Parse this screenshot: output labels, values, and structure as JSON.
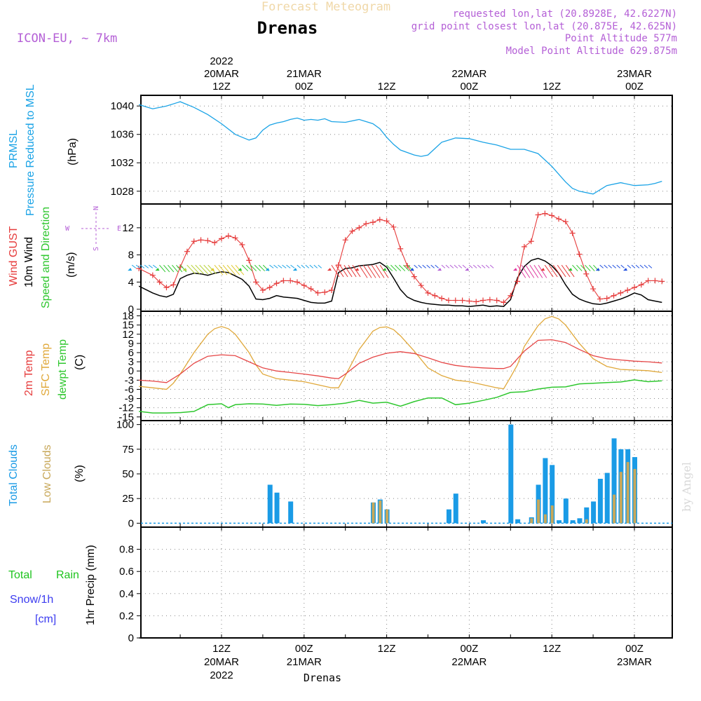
{
  "header": {
    "title_faint": "Forecast Meteogram",
    "place": "Drenas",
    "model": "ICON-EU, ~ 7km",
    "requested": "requested lon,lat (20.8928E, 42.6227N)",
    "gridpoint": "grid point closest lon,lat (20.875E, 42.625N)",
    "point_alt": "Point Altitude 577m",
    "model_alt": "Model Point Altitude 629.875m",
    "credit": "by Angel",
    "footer_place": "Drenas"
  },
  "time_axis": {
    "top_labels": [
      {
        "h": 12,
        "lines": [
          "2022",
          "20MAR",
          "12Z"
        ]
      },
      {
        "h": 24,
        "lines": [
          "21MAR",
          "00Z"
        ]
      },
      {
        "h": 36,
        "lines": [
          "12Z"
        ]
      },
      {
        "h": 48,
        "lines": [
          "22MAR",
          "00Z"
        ]
      },
      {
        "h": 60,
        "lines": [
          "12Z"
        ]
      },
      {
        "h": 72,
        "lines": [
          "23MAR",
          "00Z"
        ]
      }
    ],
    "bottom_labels": [
      {
        "h": 12,
        "lines": [
          "12Z",
          "20MAR",
          "2022"
        ]
      },
      {
        "h": 24,
        "lines": [
          "00Z",
          "21MAR"
        ]
      },
      {
        "h": 36,
        "lines": [
          "12Z"
        ]
      },
      {
        "h": 48,
        "lines": [
          "00Z",
          "22MAR"
        ]
      },
      {
        "h": 60,
        "lines": [
          "12Z"
        ]
      },
      {
        "h": 72,
        "lines": [
          "00Z",
          "23MAR"
        ]
      }
    ]
  },
  "colors": {
    "pressure": "#1aa3e6",
    "gust": "#e63c3c",
    "wind": "#000000",
    "temp2m": "#e64646",
    "sfc": "#e0a83a",
    "dew": "#2ec72e",
    "total_clouds": "#1a9be6",
    "low_clouds": "#c8a85a",
    "purple": "#b45fd6",
    "rain": "#1ec41e",
    "snow": "#3c3cf0"
  },
  "chart_data": [
    {
      "type": "line",
      "panel": "pressure",
      "labels": {
        "line1": "PRMSL",
        "line2": "Pressure Reduced to MSL",
        "units": "(hPa)"
      },
      "yticks": [
        1028,
        1032,
        1036,
        1040
      ],
      "ylim": [
        1026.2,
        1041.5
      ],
      "series": [
        {
          "name": "PRMSL",
          "x": [
            0,
            2,
            4,
            6,
            8,
            10,
            12,
            14,
            15,
            16,
            17,
            18,
            19,
            20,
            21,
            22,
            23,
            24,
            25,
            26,
            27,
            28,
            30,
            32,
            34,
            35,
            36,
            37,
            38,
            40,
            41,
            42,
            43,
            44,
            46,
            48,
            50,
            52,
            54,
            56,
            58,
            60,
            62,
            63,
            64,
            66,
            68,
            70,
            72,
            74,
            75,
            76
          ],
          "values": [
            1040.2,
            1039.6,
            1040.0,
            1040.6,
            1039.8,
            1038.8,
            1037.5,
            1036.0,
            1035.6,
            1035.2,
            1035.5,
            1036.6,
            1037.3,
            1037.6,
            1037.8,
            1038.1,
            1038.3,
            1038.0,
            1038.1,
            1038.0,
            1038.2,
            1037.8,
            1037.7,
            1038.1,
            1037.5,
            1036.8,
            1035.6,
            1034.6,
            1033.8,
            1033.1,
            1032.9,
            1033.1,
            1034.0,
            1034.9,
            1035.5,
            1035.4,
            1034.9,
            1034.5,
            1033.9,
            1033.9,
            1033.3,
            1031.5,
            1029.3,
            1028.4,
            1028.0,
            1027.6,
            1028.8,
            1029.2,
            1028.8,
            1028.9,
            1029.1,
            1029.4
          ]
        }
      ]
    },
    {
      "type": "line",
      "panel": "wind",
      "labels": {
        "gust": "Wind GUST",
        "wind": "10m Wind",
        "dir": "Speed and Direction",
        "units": "(m/s)"
      },
      "compass": {
        "n": "N",
        "s": "S",
        "e": "E",
        "w": "W"
      },
      "yticks": [
        0,
        4,
        8,
        12
      ],
      "ylim": [
        -0.3,
        15.5
      ],
      "series": [
        {
          "name": "Wind GUST",
          "x": [
            0,
            2,
            3,
            4,
            5,
            6,
            7,
            8,
            9,
            10,
            11,
            12,
            13,
            14,
            15,
            16,
            17,
            18,
            19,
            20,
            21,
            22,
            23,
            24,
            25,
            26,
            27,
            28,
            29,
            30,
            31,
            32,
            33,
            34,
            35,
            36,
            37,
            38,
            39,
            40,
            41,
            42,
            43,
            44,
            45,
            46,
            47,
            48,
            49,
            50,
            51,
            52,
            53,
            54,
            55,
            56,
            57,
            58,
            59,
            60,
            61,
            62,
            63,
            64,
            65,
            66,
            67,
            68,
            69,
            70,
            71,
            72,
            73,
            74,
            75,
            76
          ],
          "values": [
            6.0,
            5.0,
            4.0,
            3.2,
            3.6,
            6.2,
            8.5,
            10.0,
            10.2,
            10.1,
            9.8,
            10.4,
            10.8,
            10.5,
            9.5,
            7.2,
            4.0,
            2.8,
            3.2,
            3.8,
            4.2,
            4.2,
            4.0,
            3.5,
            3.0,
            2.4,
            2.5,
            2.8,
            6.5,
            10.2,
            11.5,
            12.0,
            12.6,
            12.8,
            13.2,
            13.0,
            12.1,
            8.9,
            6.4,
            4.8,
            3.5,
            2.4,
            2.0,
            1.6,
            1.3,
            1.3,
            1.3,
            1.2,
            1.1,
            1.3,
            1.4,
            1.3,
            1.0,
            2.0,
            4.1,
            9.2,
            10.0,
            13.9,
            14.1,
            13.8,
            13.3,
            12.9,
            11.2,
            8.1,
            5.2,
            3.0,
            1.5,
            1.6,
            2.0,
            2.4,
            2.8,
            3.2,
            3.6,
            4.2,
            4.2,
            4.1
          ]
        },
        {
          "name": "10m Wind",
          "x": [
            0,
            2,
            3,
            4,
            5,
            6,
            7,
            8,
            9,
            10,
            11,
            12,
            13,
            14,
            15,
            16,
            17,
            18,
            19,
            20,
            21,
            22,
            23,
            24,
            25,
            26,
            27,
            28,
            29,
            30,
            31,
            32,
            33,
            34,
            35,
            36,
            37,
            38,
            39,
            40,
            41,
            42,
            43,
            44,
            45,
            46,
            47,
            48,
            49,
            50,
            51,
            52,
            53,
            54,
            55,
            56,
            57,
            58,
            59,
            60,
            61,
            62,
            63,
            64,
            65,
            66,
            67,
            68,
            69,
            70,
            71,
            72,
            73,
            74,
            75,
            76
          ],
          "values": [
            3.4,
            2.4,
            2.0,
            1.8,
            2.2,
            4.5,
            5.0,
            5.3,
            5.2,
            5.0,
            5.3,
            5.5,
            5.4,
            4.9,
            4.4,
            3.4,
            1.5,
            1.4,
            1.6,
            2.0,
            1.8,
            1.7,
            1.6,
            1.3,
            1.0,
            0.9,
            0.9,
            1.2,
            5.4,
            6.0,
            6.1,
            6.4,
            6.5,
            6.6,
            6.9,
            6.2,
            4.6,
            2.9,
            1.8,
            1.3,
            1.0,
            0.8,
            0.7,
            0.6,
            0.6,
            0.5,
            0.5,
            0.4,
            0.5,
            0.6,
            0.4,
            0.5,
            0.4,
            1.4,
            4.6,
            6.3,
            7.2,
            7.5,
            7.1,
            6.4,
            5.3,
            3.6,
            2.2,
            1.5,
            1.1,
            0.8,
            0.7,
            0.9,
            1.2,
            1.5,
            1.9,
            2.4,
            2.1,
            1.4,
            1.2,
            1.0
          ]
        }
      ],
      "barbs": [
        {
          "h": 0,
          "c": "#1aa3e6",
          "len": 16,
          "slope": 0.3
        },
        {
          "h": 4,
          "c": "#2ec72e",
          "len": 24,
          "slope": 0.7
        },
        {
          "h": 8,
          "c": "#b8d23a",
          "len": 34,
          "slope": 0.9
        },
        {
          "h": 12,
          "c": "#e0c830",
          "len": 34,
          "slope": 1.0
        },
        {
          "h": 16,
          "c": "#2ec72e",
          "len": 24,
          "slope": 0.6
        },
        {
          "h": 20,
          "c": "#1aa3e6",
          "len": 16,
          "slope": 0.3
        },
        {
          "h": 24,
          "c": "#1aa3e6",
          "len": 14,
          "slope": 0.3
        },
        {
          "h": 29,
          "c": "#e63c3c",
          "len": 32,
          "slope": 1.2
        },
        {
          "h": 33,
          "c": "#e63c3c",
          "len": 34,
          "slope": 1.3
        },
        {
          "h": 37,
          "c": "#2ec72e",
          "len": 24,
          "slope": 0.6
        },
        {
          "h": 41,
          "c": "#2050e0",
          "len": 14,
          "slope": 0.3
        },
        {
          "h": 45,
          "c": "#b45fd6",
          "len": 14,
          "slope": 0.3
        },
        {
          "h": 49,
          "c": "#b45fd6",
          "len": 14,
          "slope": 0.3
        },
        {
          "h": 56,
          "c": "#e03ca0",
          "len": 34,
          "slope": 1.3
        },
        {
          "h": 60,
          "c": "#e63c3c",
          "len": 34,
          "slope": 1.2
        },
        {
          "h": 64,
          "c": "#2ec72e",
          "len": 22,
          "slope": 0.6
        },
        {
          "h": 68,
          "c": "#2050e0",
          "len": 14,
          "slope": 0.3
        },
        {
          "h": 72,
          "c": "#2050e0",
          "len": 14,
          "slope": 0.3
        }
      ]
    },
    {
      "type": "line",
      "panel": "temperature",
      "labels": {
        "t2m": "2m Temp",
        "sfc": "SFC Temp",
        "dew": "dewpt Temp",
        "units": "(C)"
      },
      "yticks": [
        -15,
        -12,
        -9,
        -6,
        -3,
        0,
        3,
        6,
        9,
        12,
        15,
        18
      ],
      "ylim": [
        -16.2,
        19.5
      ],
      "series": [
        {
          "name": "2m Temp",
          "x": [
            0,
            2,
            4,
            6,
            8,
            10,
            12,
            14,
            16,
            18,
            20,
            22,
            24,
            26,
            28,
            29,
            30,
            32,
            34,
            36,
            38,
            40,
            42,
            44,
            46,
            48,
            50,
            52,
            53,
            54,
            56,
            58,
            60,
            62,
            64,
            66,
            68,
            70,
            72,
            74,
            76
          ],
          "values": [
            -3.0,
            -3.3,
            -3.8,
            -1.0,
            2.5,
            4.8,
            5.3,
            5.0,
            3.0,
            1.0,
            0.0,
            -0.5,
            -1.0,
            -1.6,
            -2.3,
            -2.5,
            -1.0,
            2.5,
            4.5,
            5.8,
            6.3,
            5.7,
            4.3,
            2.8,
            1.8,
            1.3,
            1.0,
            0.8,
            0.8,
            1.5,
            6.5,
            10.0,
            10.2,
            9.3,
            7.0,
            5.0,
            4.0,
            3.6,
            3.2,
            3.0,
            2.6
          ]
        },
        {
          "name": "SFC Temp",
          "x": [
            0,
            2,
            4,
            5,
            6,
            8,
            10,
            11,
            12,
            13,
            14,
            16,
            17,
            18,
            20,
            22,
            24,
            26,
            28,
            29,
            30,
            32,
            34,
            35,
            36,
            37,
            38,
            40,
            42,
            44,
            46,
            48,
            50,
            52,
            53,
            54,
            55,
            56,
            58,
            59,
            60,
            61,
            62,
            64,
            66,
            68,
            70,
            72,
            74,
            76
          ],
          "values": [
            -5.0,
            -5.5,
            -6.0,
            -4.0,
            -1.0,
            6.0,
            12.0,
            13.8,
            14.5,
            13.8,
            12.0,
            6.0,
            2.0,
            -1.0,
            -2.5,
            -3.0,
            -3.5,
            -4.5,
            -5.5,
            -5.5,
            -1.5,
            7.0,
            13.0,
            14.2,
            14.4,
            13.5,
            11.5,
            6.5,
            1.0,
            -1.5,
            -3.0,
            -3.5,
            -4.5,
            -5.5,
            -5.8,
            -2.0,
            2.0,
            8.0,
            14.8,
            17.0,
            17.8,
            17.0,
            15.0,
            9.0,
            4.0,
            1.5,
            0.5,
            0.3,
            0.1,
            -0.5
          ]
        },
        {
          "name": "dewpt Temp",
          "x": [
            0,
            2,
            4,
            6,
            8,
            10,
            12,
            13,
            14,
            16,
            18,
            20,
            22,
            24,
            26,
            28,
            30,
            32,
            34,
            36,
            38,
            40,
            42,
            44,
            46,
            48,
            50,
            52,
            54,
            56,
            58,
            60,
            62,
            64,
            66,
            68,
            70,
            72,
            74,
            76
          ],
          "values": [
            -13.2,
            -13.7,
            -13.7,
            -13.6,
            -13.2,
            -11.0,
            -10.7,
            -12.0,
            -11.0,
            -10.7,
            -10.8,
            -11.2,
            -10.8,
            -10.9,
            -11.3,
            -11.0,
            -10.5,
            -9.6,
            -10.5,
            -10.2,
            -11.5,
            -10.0,
            -8.8,
            -8.8,
            -11.0,
            -10.5,
            -9.6,
            -8.6,
            -7.0,
            -6.8,
            -5.9,
            -5.3,
            -5.2,
            -4.2,
            -4.0,
            -3.8,
            -3.6,
            -2.9,
            -3.5,
            -3.2
          ]
        }
      ]
    },
    {
      "type": "bar",
      "panel": "clouds",
      "labels": {
        "total": "Total Clouds",
        "low": "Low Clouds",
        "units": "(%)"
      },
      "yticks": [
        0,
        25,
        50,
        75,
        100
      ],
      "ylim": [
        -4,
        104
      ],
      "series": [
        {
          "name": "Total Clouds",
          "x": [
            19,
            20,
            22,
            34,
            35,
            36,
            45,
            46,
            50,
            54,
            55,
            57,
            58,
            59,
            60,
            61,
            62,
            63,
            64,
            65,
            66,
            67,
            68,
            69,
            70,
            71,
            72
          ],
          "values": [
            39,
            31,
            22,
            21,
            24,
            14,
            14,
            30,
            3,
            100,
            4,
            6,
            39,
            66,
            59,
            3,
            25,
            3,
            5,
            16,
            22,
            45,
            51,
            86,
            75,
            75,
            67
          ]
        },
        {
          "name": "Low Clouds",
          "x": [
            34,
            35,
            36,
            57,
            58,
            59,
            60,
            65,
            69,
            70,
            71,
            72
          ],
          "values": [
            21,
            23,
            14,
            5,
            24,
            9,
            18,
            4,
            29,
            52,
            62,
            55
          ]
        }
      ]
    },
    {
      "type": "line",
      "panel": "precip",
      "labels": {
        "total": "Total",
        "rain": "Rain",
        "snow": "Snow/1h",
        "cm": "[cm]",
        "units": "1hr Precip (mm)"
      },
      "yticks": [
        0,
        0.2,
        0.4,
        0.6,
        0.8
      ],
      "ylim": [
        0,
        1.0
      ],
      "series": [
        {
          "name": "Rain",
          "x": [
            0,
            76
          ],
          "values": [
            0,
            0
          ]
        }
      ]
    }
  ]
}
